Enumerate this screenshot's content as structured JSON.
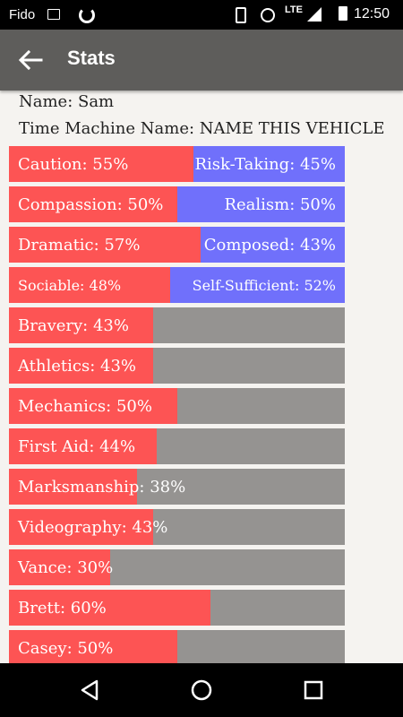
{
  "status_bar": {
    "carrier": "Fido",
    "network": "LTE",
    "time": "12:50",
    "icons": [
      "image-icon",
      "sync-icon",
      "vibrate-icon",
      "alarm-icon",
      "signal-icon",
      "battery-icon"
    ]
  },
  "app_bar": {
    "title": "Stats",
    "back_icon": "arrow-left-icon"
  },
  "profile": {
    "name_line": "Name: Sam",
    "vehicle_line": "Time Machine Name: NAME THIS VEHICLE"
  },
  "colors": {
    "primary": "#fd5454",
    "secondary": "#7070fb",
    "neutral": "#959391",
    "app_bar": "#5e5d5b",
    "background": "#f5f3f0"
  },
  "dual_traits": [
    {
      "left_label": "Caution: 55%",
      "right_label": "Risk-Taking: 45%",
      "left_percent": 55,
      "right_percent": 45
    },
    {
      "left_label": "Compassion: 50%",
      "right_label": "Realism: 50%",
      "left_percent": 50,
      "right_percent": 50
    },
    {
      "left_label": "Dramatic: 57%",
      "right_label": "Composed: 43%",
      "left_percent": 57,
      "right_percent": 43
    },
    {
      "left_label": "Sociable: 48%",
      "right_label": "Self-Sufficient: 52%",
      "left_percent": 48,
      "right_percent": 52
    }
  ],
  "skills": [
    {
      "label": "Bravery: 43%",
      "percent": 43
    },
    {
      "label": "Athletics: 43%",
      "percent": 43
    },
    {
      "label": "Mechanics: 50%",
      "percent": 50
    },
    {
      "label": "First Aid: 44%",
      "percent": 44
    },
    {
      "label": "Marksmanship: 38%",
      "percent": 38
    },
    {
      "label": "Videography: 43%",
      "percent": 43
    },
    {
      "label": "Vance: 30%",
      "percent": 30
    },
    {
      "label": "Brett: 60%",
      "percent": 60
    },
    {
      "label": "Casey: 50%",
      "percent": 50
    }
  ],
  "nav_bar": {
    "back_icon": "nav-back-icon",
    "home_icon": "nav-home-icon",
    "recents_icon": "nav-recents-icon"
  }
}
